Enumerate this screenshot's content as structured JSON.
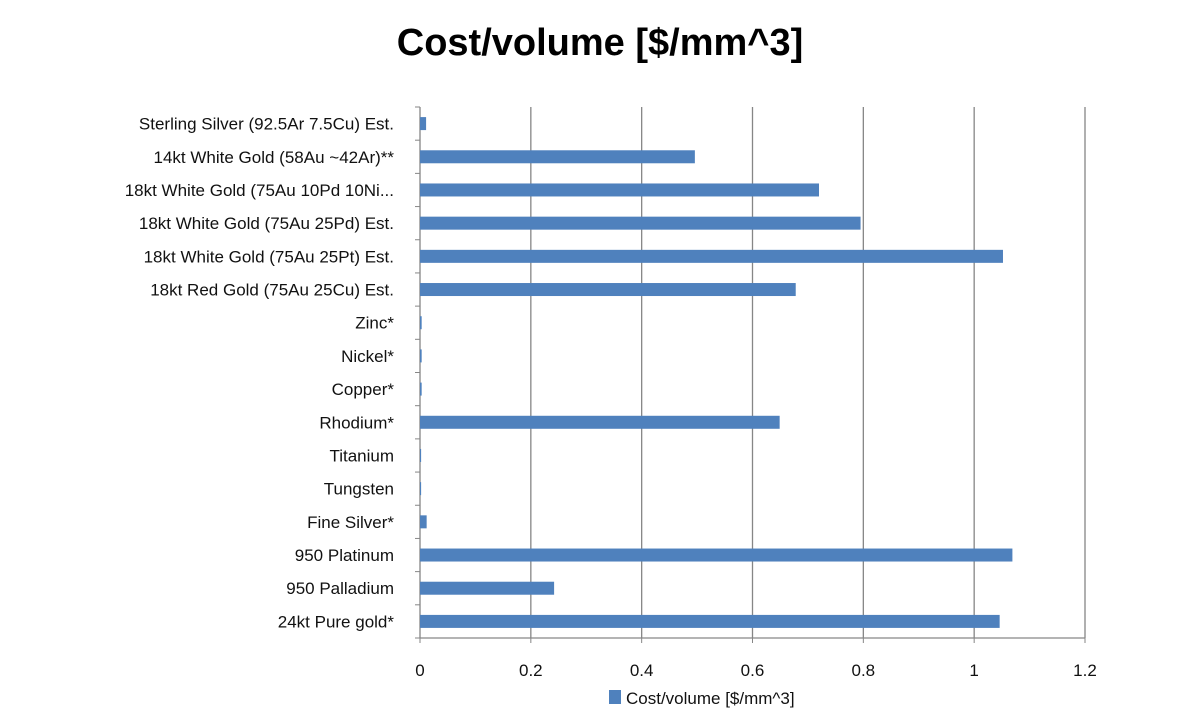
{
  "chart_data": {
    "type": "bar",
    "orientation": "horizontal",
    "title": "Cost/volume [$/mm^3]",
    "categories": [
      "Sterling Silver (92.5Ar 7.5Cu) Est.",
      "14kt White Gold (58Au ~42Ar)**",
      "18kt White Gold (75Au 10Pd 10Ni...",
      "18kt White Gold (75Au 25Pd) Est.",
      "18kt White Gold (75Au 25Pt) Est.",
      "18kt Red Gold (75Au 25Cu) Est.",
      "Zinc*",
      "Nickel*",
      "Copper*",
      "Rhodium*",
      "Titanium",
      "Tungsten",
      "Fine Silver*",
      "950 Platinum",
      "950 Palladium",
      "24kt Pure gold*"
    ],
    "series": [
      {
        "name": "Cost/volume [$/mm^3]",
        "color": "#4f81bd",
        "values": [
          0.011,
          0.496,
          0.72,
          0.795,
          1.052,
          0.678,
          0.003,
          0.003,
          0.003,
          0.649,
          0.002,
          0.002,
          0.012,
          1.069,
          0.242,
          1.046
        ]
      }
    ],
    "xlim": [
      0,
      1.2
    ],
    "xticks": [
      "0",
      "0.2",
      "0.4",
      "0.6",
      "0.8",
      "1",
      "1.2"
    ],
    "grid": "vertical",
    "legend": "bottom"
  }
}
